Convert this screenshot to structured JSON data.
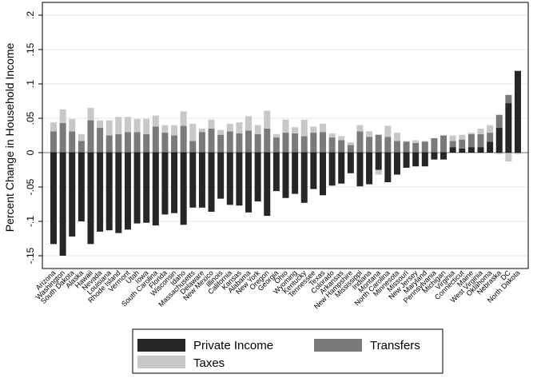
{
  "chart_data": {
    "type": "bar",
    "stacked": true,
    "title": "",
    "xlabel": "",
    "ylabel": "Percent Change in Household Income",
    "ylim": [
      -0.17,
      0.22
    ],
    "yticks": [
      -0.15,
      -0.1,
      -0.05,
      0,
      0.05,
      0.1,
      0.15,
      0.2
    ],
    "ytick_labels": [
      "-.15",
      "-.1",
      "-.05",
      "0",
      ".05",
      ".1",
      ".15",
      ".2"
    ],
    "grid": "horizontal",
    "legend_position": "bottom",
    "colors": {
      "private_income": "#262626",
      "transfers": "#7a7a7a",
      "taxes": "#c8c8c8"
    },
    "categories": [
      "Arizona",
      "Washington",
      "South Dakota",
      "Alaska",
      "Hawaii",
      "Nevada",
      "Louisiana",
      "Rhode Island",
      "Vermont",
      "Utah",
      "Iowa",
      "South Carolina",
      "Florida",
      "Wisconsin",
      "Idaho",
      "Massachusetts",
      "Delaware",
      "New Mexico",
      "Illinois",
      "California",
      "Kansas",
      "Alabama",
      "New York",
      "Oregon",
      "Georgia",
      "Ohio",
      "Wyoming",
      "Kentucky",
      "Tennessee",
      "Texas",
      "Colorado",
      "Arkansas",
      "New Hampshire",
      "Mississippi",
      "Indiana",
      "Montana",
      "North Carolina",
      "Minnesota",
      "Missouri",
      "New Jersey",
      "Maryland",
      "Pennsylvania",
      "Michigan",
      "Virginia",
      "Connecticut",
      "Maine",
      "West Virginia",
      "Oklahoma",
      "Nebraska",
      "DC",
      "North Dakota"
    ],
    "series": [
      {
        "name": "Private Income",
        "values": [
          -0.133,
          -0.15,
          -0.122,
          -0.1,
          -0.133,
          -0.115,
          -0.113,
          -0.117,
          -0.112,
          -0.103,
          -0.102,
          -0.106,
          -0.09,
          -0.088,
          -0.105,
          -0.08,
          -0.08,
          -0.086,
          -0.067,
          -0.076,
          -0.077,
          -0.087,
          -0.071,
          -0.092,
          -0.056,
          -0.066,
          -0.06,
          -0.073,
          -0.053,
          -0.062,
          -0.048,
          -0.045,
          -0.03,
          -0.049,
          -0.046,
          -0.025,
          -0.043,
          -0.032,
          -0.022,
          -0.02,
          -0.02,
          -0.01,
          -0.01,
          0.008,
          0.006,
          0.008,
          0.008,
          0.016,
          0.036,
          0.072,
          0.119
        ]
      },
      {
        "name": "Transfers",
        "values": [
          0.031,
          0.043,
          0.031,
          0.017,
          0.047,
          0.036,
          0.025,
          0.027,
          0.03,
          0.03,
          0.027,
          0.038,
          0.029,
          0.025,
          0.039,
          0.017,
          0.03,
          0.035,
          0.026,
          0.031,
          0.028,
          0.032,
          0.027,
          0.035,
          0.022,
          0.029,
          0.028,
          0.024,
          0.029,
          0.03,
          0.022,
          0.018,
          0.011,
          0.031,
          0.023,
          0.026,
          0.023,
          0.017,
          0.016,
          0.014,
          0.016,
          0.021,
          0.025,
          0.009,
          0.013,
          0.019,
          0.019,
          0.013,
          0.019,
          0.012,
          0.0
        ]
      },
      {
        "name": "Taxes",
        "values": [
          0.013,
          0.02,
          0.018,
          0.01,
          0.018,
          0.011,
          0.022,
          0.025,
          0.022,
          0.019,
          0.022,
          0.016,
          0.011,
          0.015,
          0.021,
          0.025,
          0.005,
          0.013,
          0.007,
          0.011,
          0.016,
          0.021,
          0.013,
          0.026,
          0.005,
          0.019,
          0.009,
          0.024,
          0.009,
          0.012,
          0.006,
          0.006,
          0.004,
          0.009,
          0.008,
          -0.007,
          0.016,
          0.012,
          0.001,
          0.004,
          0.001,
          0.0,
          0.0,
          0.008,
          0.007,
          0.002,
          0.008,
          0.011,
          -0.002,
          -0.013,
          -0.002
        ]
      }
    ]
  },
  "legend": {
    "private_income": "Private Income",
    "transfers": "Transfers",
    "taxes": "Taxes"
  }
}
